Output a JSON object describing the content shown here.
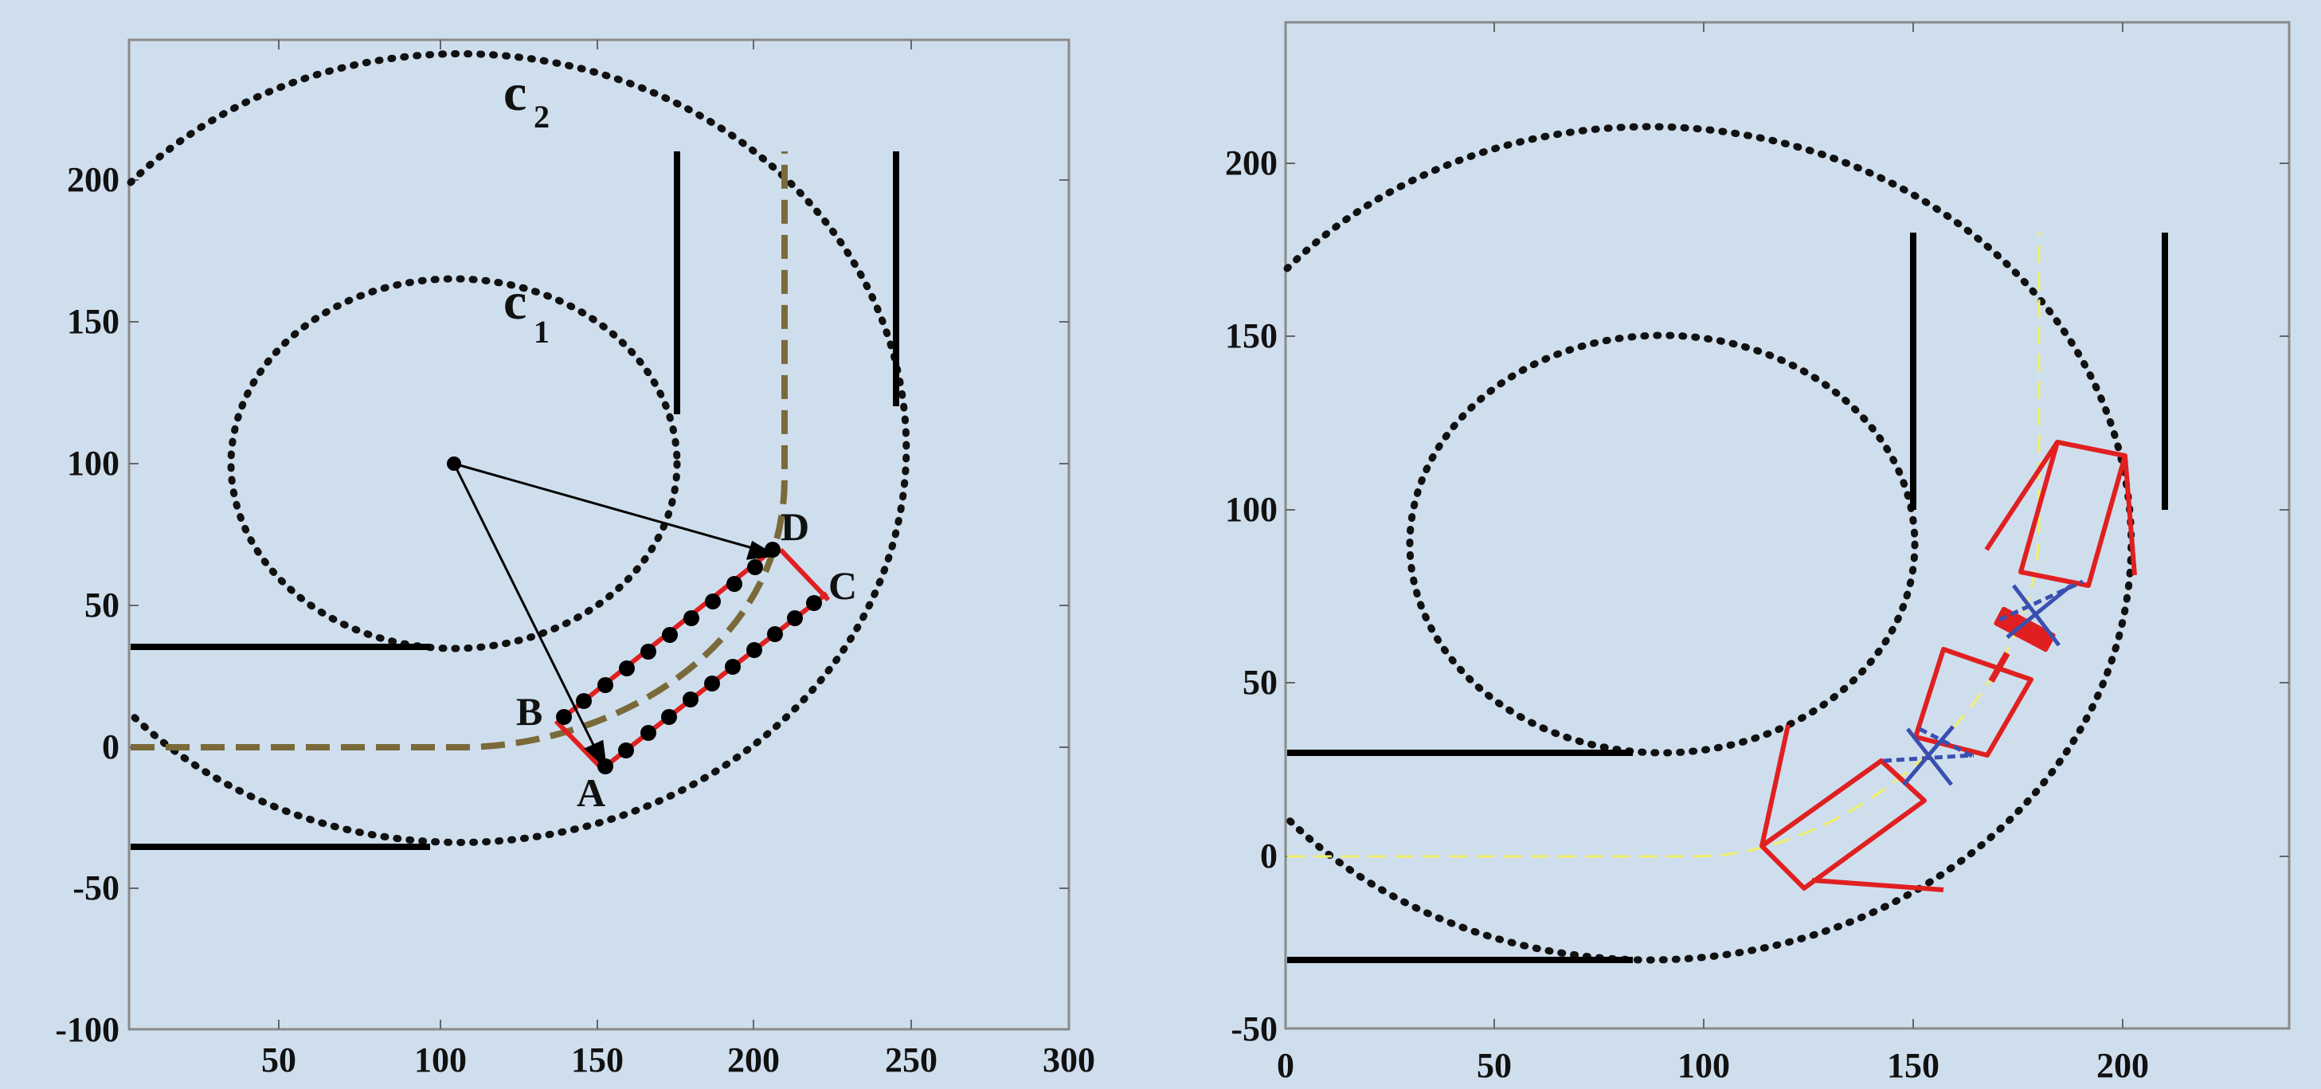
{
  "left_panel": {
    "x_ticks": [
      "50",
      "100",
      "150",
      "200",
      "250",
      "300"
    ],
    "y_ticks": [
      "200",
      "150",
      "100",
      "50",
      "0",
      "-50",
      "-100"
    ],
    "circle_labels": [
      {
        "main": "c",
        "sub": "2"
      },
      {
        "main": "c",
        "sub": "1"
      }
    ],
    "point_labels": {
      "A": "A",
      "B": "B",
      "C": "C",
      "D": "D"
    }
  },
  "right_panel": {
    "x_ticks": [
      "0",
      "50",
      "100",
      "150",
      "200"
    ],
    "y_ticks": [
      "200",
      "150",
      "100",
      "50",
      "0",
      "-50"
    ]
  },
  "colors": {
    "background": "#cfdeed",
    "circle": "#111111",
    "wall": "#000000",
    "path_left": "#7a6a3a",
    "path_right": "#f2ef6a",
    "vehicle": "#e02020",
    "hitch": "#3a4fb0",
    "marker": "#000000"
  }
}
